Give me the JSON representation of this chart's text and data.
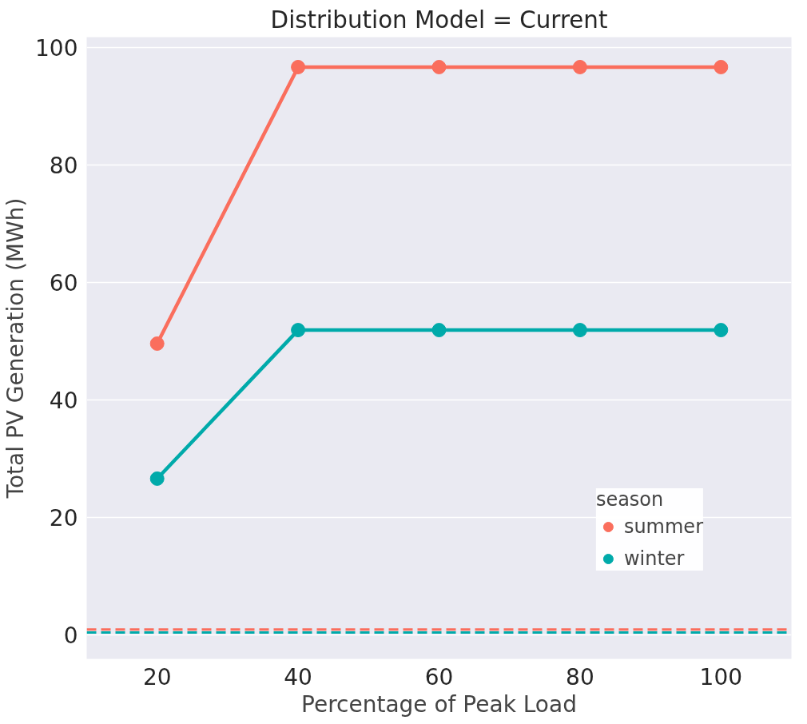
{
  "chart_data": {
    "type": "line",
    "title": "Distribution Model = Current",
    "xlabel": "Percentage of Peak Load",
    "ylabel": "Total PV Generation (MWh)",
    "legend_title": "season",
    "categories": [
      "20",
      "40",
      "60",
      "80",
      "100"
    ],
    "series": [
      {
        "name": "summer",
        "color": "#fa6e5d",
        "values": [
          49.6,
          96.7,
          96.7,
          96.7,
          96.7
        ]
      },
      {
        "name": "winter",
        "color": "#00aaaa",
        "values": [
          26.6,
          51.9,
          51.9,
          51.9,
          51.9
        ]
      }
    ],
    "ylim": [
      -4.1,
      101.8
    ],
    "yticks": [
      0,
      20,
      40,
      60,
      80,
      100
    ],
    "grid": "y",
    "legend": "right",
    "marker": "circle",
    "line_style": "solid",
    "ref_lines": [
      {
        "axis": "y",
        "value": 0.9,
        "color": "#fa6e5d",
        "line_style": "dashed"
      },
      {
        "axis": "y",
        "value": 0.4,
        "color": "#00aaaa",
        "line_style": "dashed"
      }
    ]
  }
}
